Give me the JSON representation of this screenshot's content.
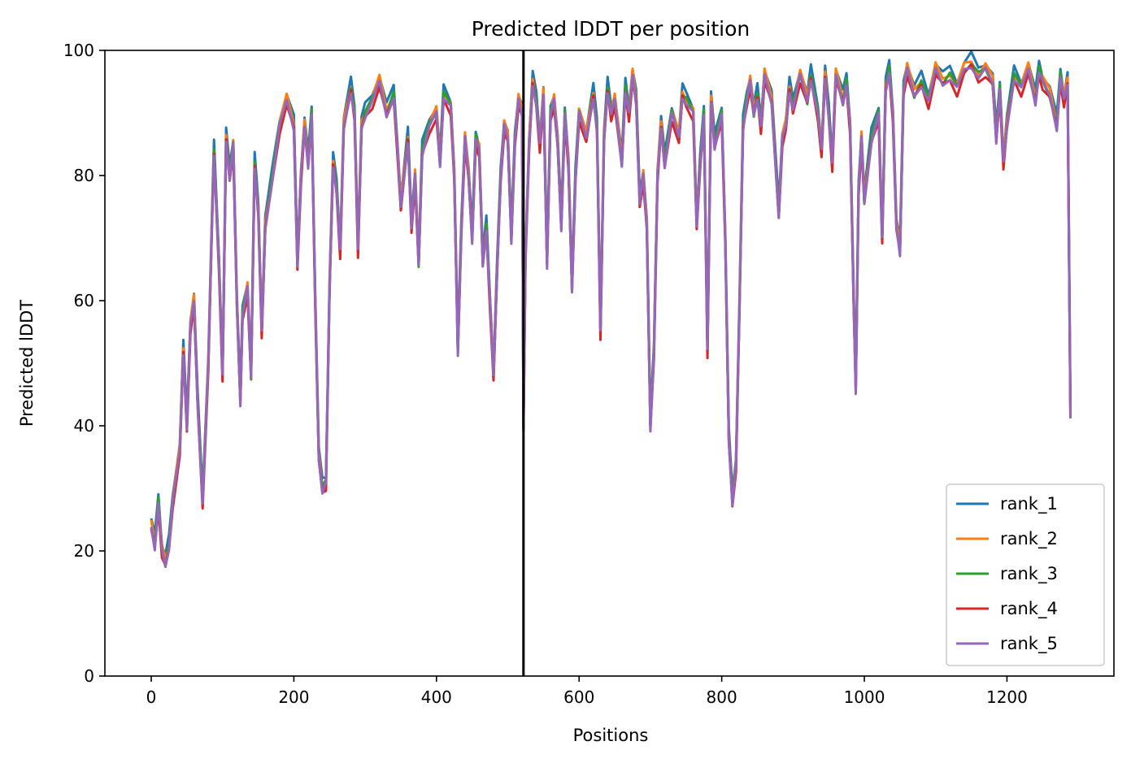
{
  "chart_data": {
    "type": "line",
    "title": "Predicted lDDT per position",
    "xlabel": "Positions",
    "ylabel": "Predicted lDDT",
    "xlim": [
      -65,
      1350
    ],
    "ylim": [
      0,
      100
    ],
    "xticks": [
      0,
      200,
      400,
      600,
      800,
      1000,
      1200
    ],
    "yticks": [
      0,
      20,
      40,
      60,
      80,
      100
    ],
    "vline_x": 522,
    "grid": false,
    "legend_position": "lower right",
    "base_profile": [
      [
        0,
        24
      ],
      [
        5,
        21
      ],
      [
        10,
        28
      ],
      [
        15,
        20
      ],
      [
        20,
        18
      ],
      [
        25,
        21
      ],
      [
        30,
        28
      ],
      [
        40,
        36
      ],
      [
        45,
        52
      ],
      [
        50,
        40
      ],
      [
        55,
        56
      ],
      [
        60,
        60
      ],
      [
        65,
        44
      ],
      [
        72,
        28
      ],
      [
        80,
        50
      ],
      [
        85,
        72
      ],
      [
        88,
        84
      ],
      [
        95,
        66
      ],
      [
        100,
        48
      ],
      [
        105,
        86
      ],
      [
        110,
        80
      ],
      [
        115,
        85
      ],
      [
        120,
        60
      ],
      [
        125,
        44
      ],
      [
        128,
        58
      ],
      [
        135,
        62
      ],
      [
        140,
        48
      ],
      [
        145,
        82
      ],
      [
        150,
        75
      ],
      [
        155,
        55
      ],
      [
        160,
        72
      ],
      [
        170,
        80
      ],
      [
        180,
        88
      ],
      [
        190,
        92
      ],
      [
        200,
        88
      ],
      [
        205,
        66
      ],
      [
        210,
        80
      ],
      [
        215,
        88
      ],
      [
        220,
        82
      ],
      [
        225,
        90
      ],
      [
        230,
        60
      ],
      [
        235,
        35
      ],
      [
        240,
        30
      ],
      [
        245,
        31
      ],
      [
        250,
        62
      ],
      [
        255,
        82
      ],
      [
        260,
        78
      ],
      [
        265,
        68
      ],
      [
        270,
        88
      ],
      [
        280,
        94
      ],
      [
        285,
        90
      ],
      [
        290,
        68
      ],
      [
        295,
        88
      ],
      [
        300,
        90
      ],
      [
        310,
        92
      ],
      [
        320,
        95
      ],
      [
        330,
        90
      ],
      [
        340,
        93
      ],
      [
        345,
        85
      ],
      [
        350,
        75
      ],
      [
        360,
        86
      ],
      [
        365,
        72
      ],
      [
        370,
        80
      ],
      [
        375,
        66
      ],
      [
        380,
        84
      ],
      [
        390,
        88
      ],
      [
        400,
        90
      ],
      [
        405,
        82
      ],
      [
        410,
        93
      ],
      [
        420,
        91
      ],
      [
        425,
        80
      ],
      [
        430,
        52
      ],
      [
        435,
        72
      ],
      [
        440,
        86
      ],
      [
        445,
        80
      ],
      [
        450,
        70
      ],
      [
        455,
        86
      ],
      [
        460,
        84
      ],
      [
        465,
        66
      ],
      [
        470,
        72
      ],
      [
        475,
        60
      ],
      [
        480,
        48
      ],
      [
        485,
        65
      ],
      [
        490,
        80
      ],
      [
        495,
        88
      ],
      [
        500,
        86
      ],
      [
        505,
        70
      ],
      [
        510,
        86
      ],
      [
        515,
        92
      ],
      [
        520,
        90
      ],
      [
        522,
        40
      ],
      [
        525,
        68
      ],
      [
        530,
        85
      ],
      [
        535,
        95
      ],
      [
        540,
        92
      ],
      [
        545,
        85
      ],
      [
        550,
        93
      ],
      [
        555,
        66
      ],
      [
        560,
        90
      ],
      [
        565,
        92
      ],
      [
        570,
        85
      ],
      [
        575,
        72
      ],
      [
        580,
        90
      ],
      [
        585,
        82
      ],
      [
        590,
        62
      ],
      [
        595,
        80
      ],
      [
        600,
        90
      ],
      [
        610,
        86
      ],
      [
        620,
        93
      ],
      [
        625,
        88
      ],
      [
        630,
        55
      ],
      [
        635,
        86
      ],
      [
        640,
        94
      ],
      [
        645,
        90
      ],
      [
        650,
        92
      ],
      [
        660,
        82
      ],
      [
        665,
        94
      ],
      [
        670,
        90
      ],
      [
        675,
        96
      ],
      [
        680,
        92
      ],
      [
        685,
        76
      ],
      [
        690,
        80
      ],
      [
        695,
        72
      ],
      [
        700,
        40
      ],
      [
        705,
        52
      ],
      [
        710,
        80
      ],
      [
        715,
        88
      ],
      [
        720,
        82
      ],
      [
        730,
        90
      ],
      [
        740,
        86
      ],
      [
        745,
        93
      ],
      [
        750,
        92
      ],
      [
        760,
        90
      ],
      [
        765,
        72
      ],
      [
        770,
        82
      ],
      [
        775,
        90
      ],
      [
        780,
        52
      ],
      [
        785,
        92
      ],
      [
        790,
        85
      ],
      [
        800,
        90
      ],
      [
        805,
        70
      ],
      [
        810,
        38
      ],
      [
        815,
        28
      ],
      [
        820,
        34
      ],
      [
        825,
        60
      ],
      [
        830,
        88
      ],
      [
        835,
        92
      ],
      [
        840,
        95
      ],
      [
        845,
        90
      ],
      [
        850,
        93
      ],
      [
        855,
        88
      ],
      [
        860,
        96
      ],
      [
        870,
        92
      ],
      [
        880,
        74
      ],
      [
        885,
        86
      ],
      [
        890,
        88
      ],
      [
        895,
        94
      ],
      [
        900,
        91
      ],
      [
        910,
        96
      ],
      [
        920,
        92
      ],
      [
        925,
        96
      ],
      [
        935,
        90
      ],
      [
        940,
        84
      ],
      [
        945,
        96
      ],
      [
        950,
        90
      ],
      [
        955,
        82
      ],
      [
        960,
        96
      ],
      [
        970,
        92
      ],
      [
        975,
        95
      ],
      [
        980,
        88
      ],
      [
        985,
        60
      ],
      [
        988,
        46
      ],
      [
        992,
        78
      ],
      [
        996,
        86
      ],
      [
        1000,
        76
      ],
      [
        1010,
        86
      ],
      [
        1020,
        90
      ],
      [
        1025,
        70
      ],
      [
        1030,
        94
      ],
      [
        1035,
        97
      ],
      [
        1040,
        90
      ],
      [
        1045,
        72
      ],
      [
        1050,
        68
      ],
      [
        1055,
        94
      ],
      [
        1060,
        97
      ],
      [
        1070,
        93
      ],
      [
        1080,
        95
      ],
      [
        1090,
        92
      ],
      [
        1100,
        97
      ],
      [
        1110,
        95
      ],
      [
        1120,
        96
      ],
      [
        1130,
        94
      ],
      [
        1140,
        97
      ],
      [
        1150,
        98
      ],
      [
        1160,
        96
      ],
      [
        1170,
        97
      ],
      [
        1180,
        95
      ],
      [
        1185,
        86
      ],
      [
        1190,
        94
      ],
      [
        1195,
        82
      ],
      [
        1200,
        88
      ],
      [
        1210,
        96
      ],
      [
        1220,
        94
      ],
      [
        1230,
        97
      ],
      [
        1240,
        92
      ],
      [
        1245,
        97
      ],
      [
        1250,
        95
      ],
      [
        1260,
        93
      ],
      [
        1270,
        88
      ],
      [
        1275,
        96
      ],
      [
        1280,
        92
      ],
      [
        1285,
        95
      ],
      [
        1289,
        42
      ]
    ],
    "series": [
      {
        "name": "rank_1",
        "color": "#1f77b4",
        "offset": 1.2
      },
      {
        "name": "rank_2",
        "color": "#ff7f0e",
        "offset": 0.5
      },
      {
        "name": "rank_3",
        "color": "#2ca02c",
        "offset": 0.0
      },
      {
        "name": "rank_4",
        "color": "#d62728",
        "offset": -0.8
      },
      {
        "name": "rank_5",
        "color": "#9467bd",
        "offset": -0.3
      }
    ]
  }
}
